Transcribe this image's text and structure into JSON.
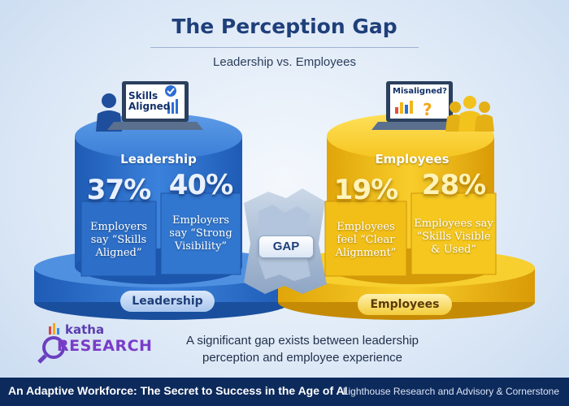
{
  "title": "The Perception Gap",
  "subtitle": "Leadership vs. Employees",
  "leadership": {
    "heading": "Leadership",
    "laptop_text": "Skills Aligned",
    "stats": [
      {
        "value": "37%",
        "label": "Employers say “Skills Aligned”"
      },
      {
        "value": "40%",
        "label": "Employers say “Strong Visibility”"
      }
    ],
    "base_label": "Leadership",
    "color": "#2f74cc"
  },
  "employees": {
    "heading": "Employees",
    "laptop_text": "Misaligned?",
    "stats": [
      {
        "value": "19%",
        "label": "Employees feel “Clear Alignment”"
      },
      {
        "value": "28%",
        "label": "Employees say “Skills Visible & Used”"
      }
    ],
    "base_label": "Employees",
    "color": "#f2c21d"
  },
  "gap_label": "GAP",
  "caption": "A significant gap exists between leadership perception and employee experience",
  "logo": {
    "top_text": "katha",
    "bottom_text": "RESEARCH"
  },
  "footer": {
    "left": "An Adaptive Workforce: The Secret to Success in the Age of AI",
    "right": "Lighthouse Research and Advisory & Cornerstone"
  }
}
